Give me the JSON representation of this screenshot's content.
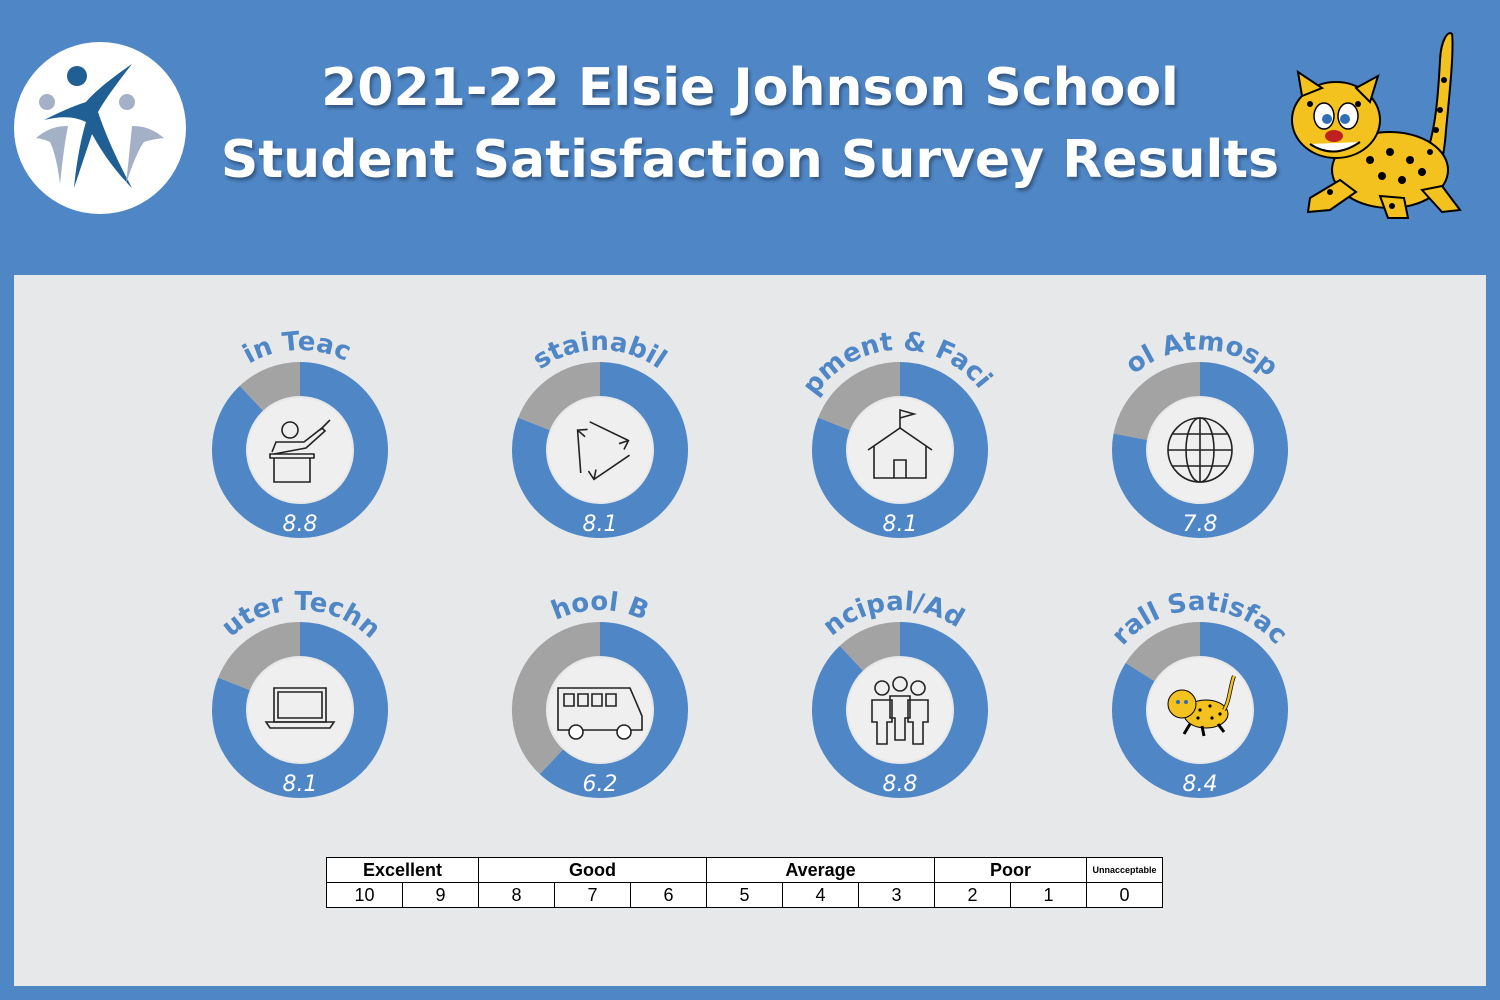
{
  "header": {
    "title_line1": "2021-22 Elsie Johnson School",
    "title_line2": "Student Satisfaction Survey Results"
  },
  "colors": {
    "background": "#4f86c6",
    "panel": "#e7e8ea",
    "score_fill": "#4f86c6",
    "remainder_fill": "#a3a3a3",
    "center": "#efefef",
    "label": "#4f86c6"
  },
  "chart_data": {
    "type": "donut",
    "max": 10,
    "items": [
      {
        "label": "Main Teacher",
        "value": 8.8,
        "display": "8.8",
        "icon": "teacher-icon"
      },
      {
        "label": "Sustainability",
        "value": 8.1,
        "display": "8.1",
        "icon": "recycle-icon"
      },
      {
        "label": "Equipment & Facilities",
        "value": 8.1,
        "display": "8.1",
        "icon": "schoolhouse-icon"
      },
      {
        "label": "School Atmosphere",
        "value": 7.8,
        "display": "7.8",
        "icon": "globe-icon"
      },
      {
        "label": "Computer Technology",
        "value": 8.1,
        "display": "8.1",
        "icon": "laptop-icon"
      },
      {
        "label": "School Bus",
        "value": 6.2,
        "display": "6.2",
        "icon": "bus-icon"
      },
      {
        "label": "Principal/Admin",
        "value": 8.8,
        "display": "8.8",
        "icon": "people-icon"
      },
      {
        "label": "Overall Satisfaction",
        "value": 8.4,
        "display": "8.4",
        "icon": "leopard-icon"
      }
    ]
  },
  "scale": {
    "categories": [
      "Excellent",
      "Good",
      "Average",
      "Poor",
      "Unnacceptable"
    ],
    "numbers": [
      "10",
      "9",
      "8",
      "7",
      "6",
      "5",
      "4",
      "3",
      "2",
      "1",
      "0"
    ]
  }
}
